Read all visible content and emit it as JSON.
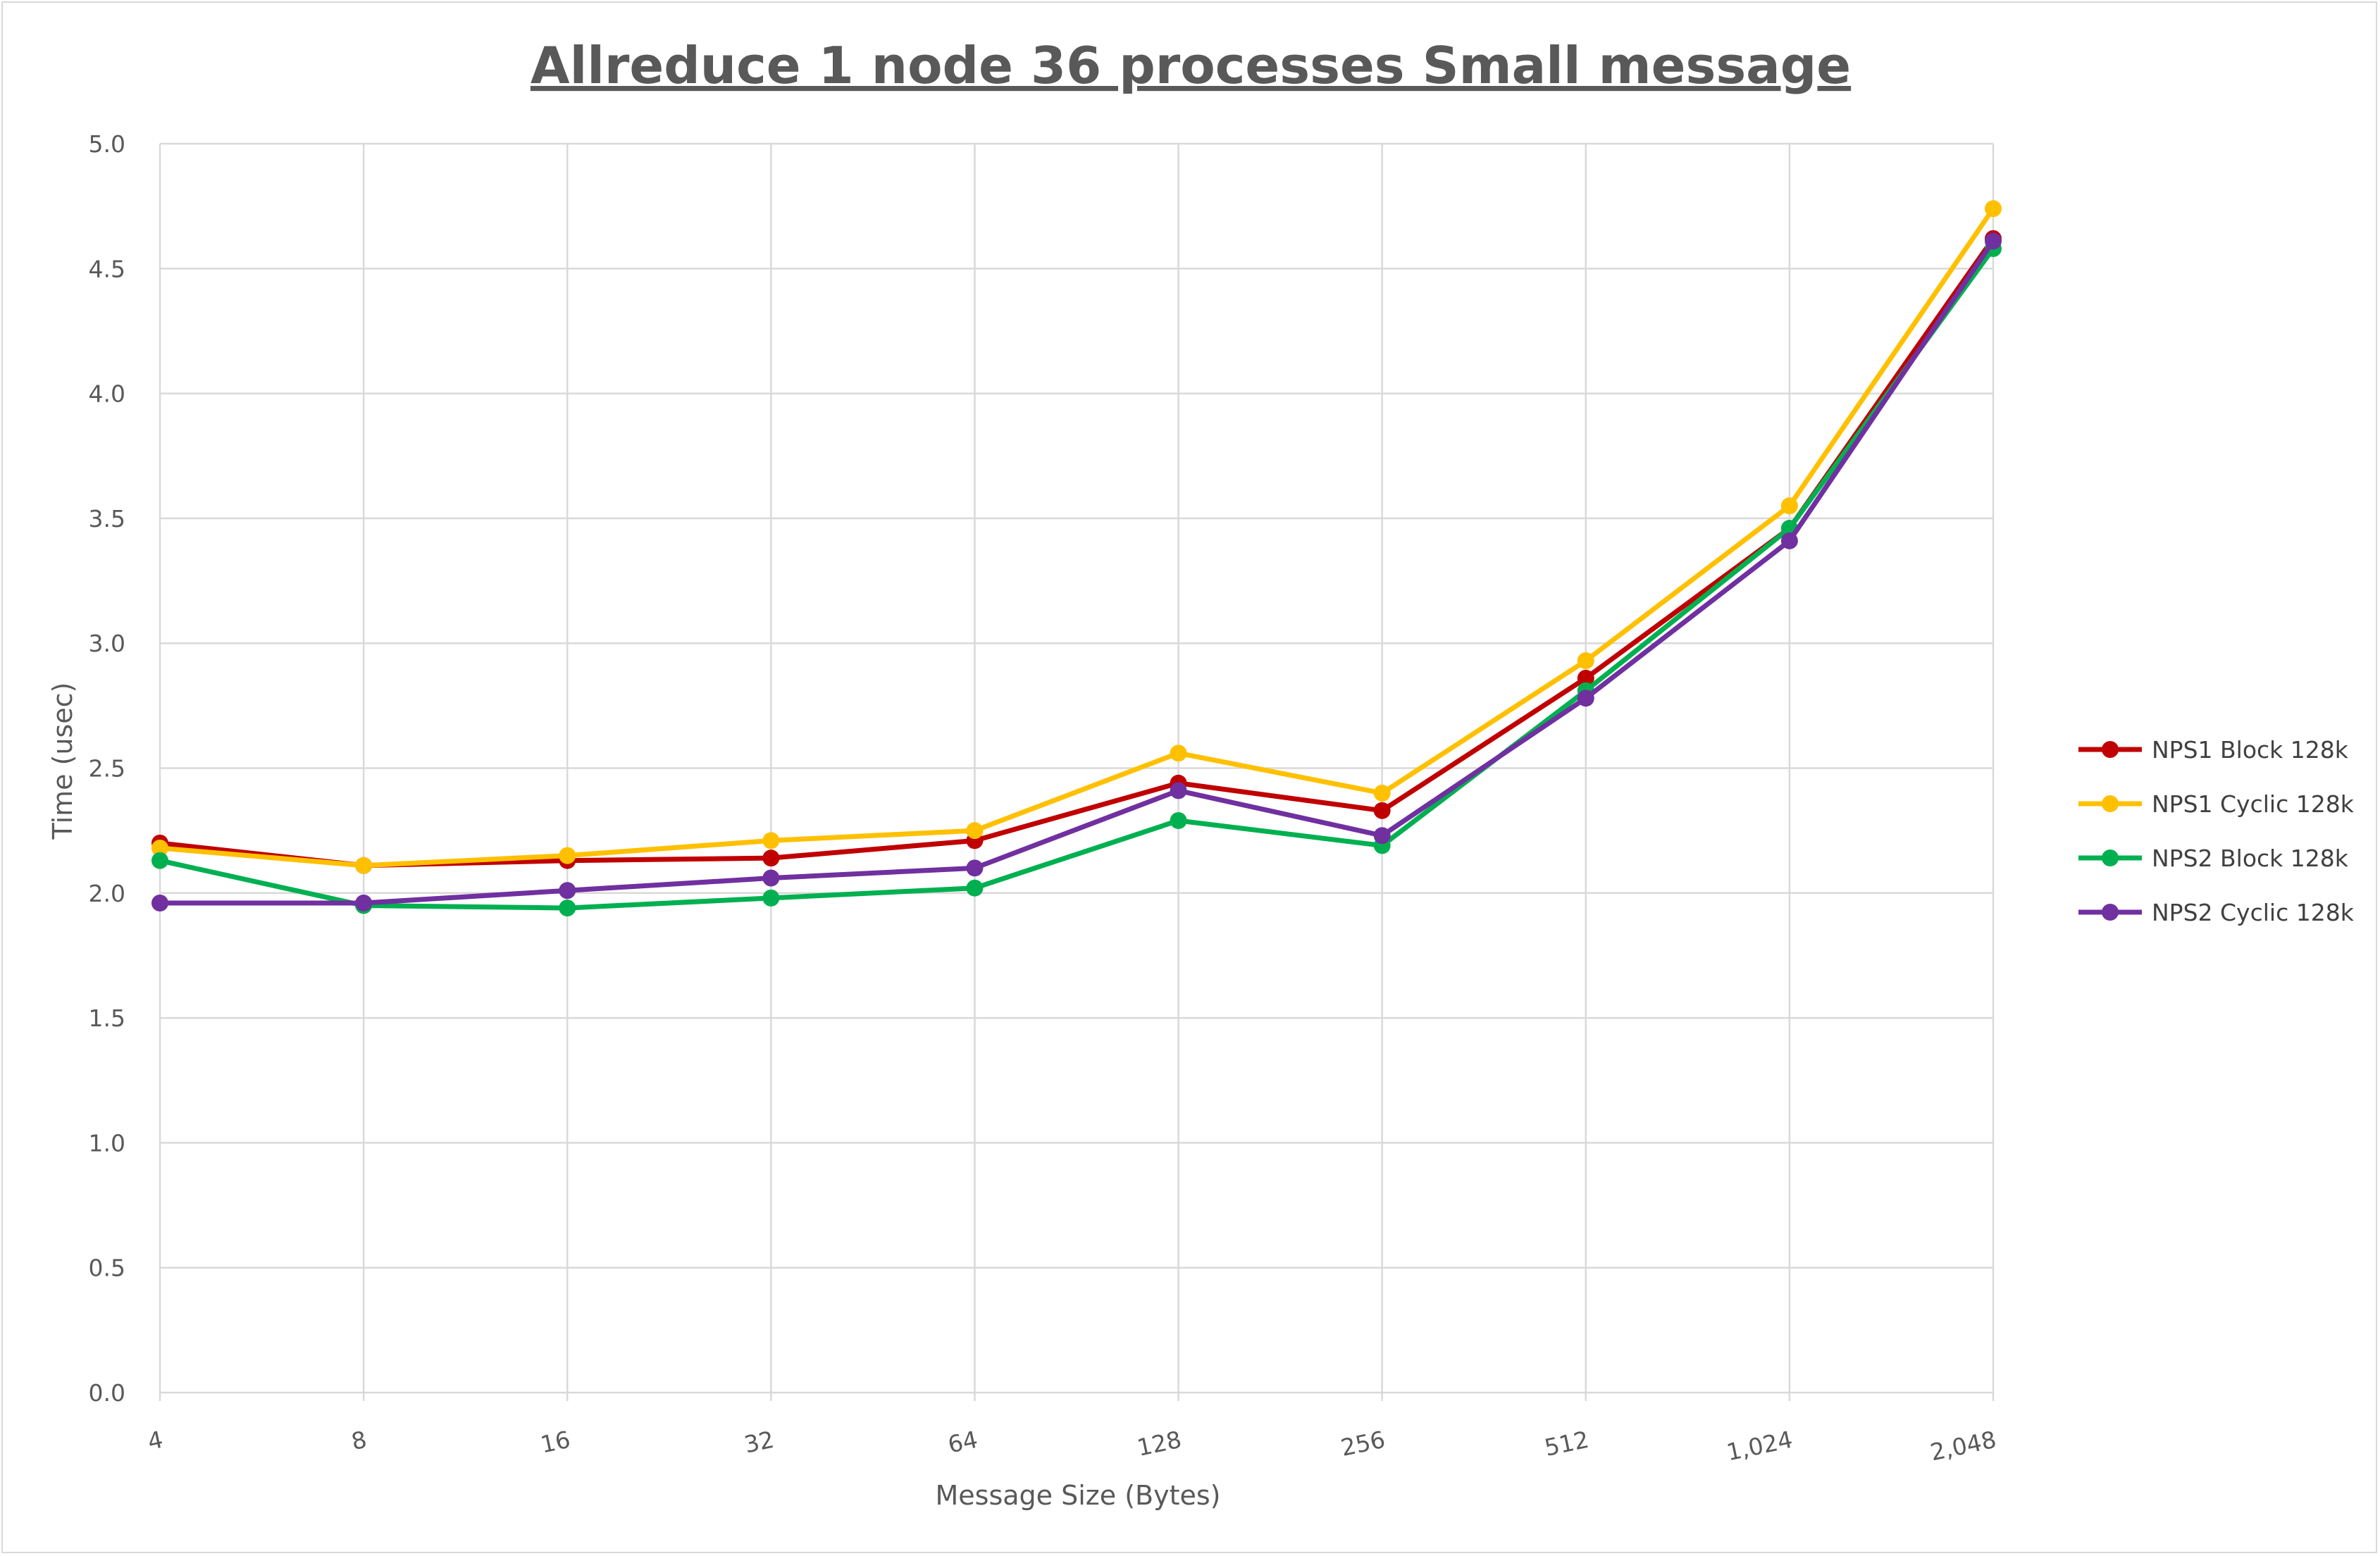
{
  "chart_data": {
    "type": "line",
    "title": "Allreduce 1 node 36 processes Small message",
    "xlabel": "Message Size (Bytes)",
    "ylabel": "Time (usec)",
    "categories": [
      "4",
      "8",
      "16",
      "32",
      "64",
      "128",
      "256",
      "512",
      "1,024",
      "2,048"
    ],
    "ylim": [
      0,
      5
    ],
    "yticks": [
      "0.0",
      "0.5",
      "1.0",
      "1.5",
      "2.0",
      "2.5",
      "3.0",
      "3.5",
      "4.0",
      "4.5",
      "5.0"
    ],
    "grid": true,
    "legend_position": "right",
    "series": [
      {
        "name": "NPS1 Block 128k",
        "color": "#c00000",
        "values": [
          2.2,
          2.11,
          2.13,
          2.14,
          2.21,
          2.44,
          2.33,
          2.86,
          3.46,
          4.62
        ]
      },
      {
        "name": "NPS1 Cyclic 128k",
        "color": "#ffc000",
        "values": [
          2.18,
          2.11,
          2.15,
          2.21,
          2.25,
          2.56,
          2.4,
          2.93,
          3.55,
          4.74
        ]
      },
      {
        "name": "NPS2 Block 128k",
        "color": "#00b050",
        "values": [
          2.13,
          1.95,
          1.94,
          1.98,
          2.02,
          2.29,
          2.19,
          2.81,
          3.46,
          4.58
        ]
      },
      {
        "name": "NPS2 Cyclic 128k",
        "color": "#7030a0",
        "values": [
          1.96,
          1.96,
          2.01,
          2.06,
          2.1,
          2.41,
          2.23,
          2.78,
          3.41,
          4.61
        ]
      }
    ]
  }
}
